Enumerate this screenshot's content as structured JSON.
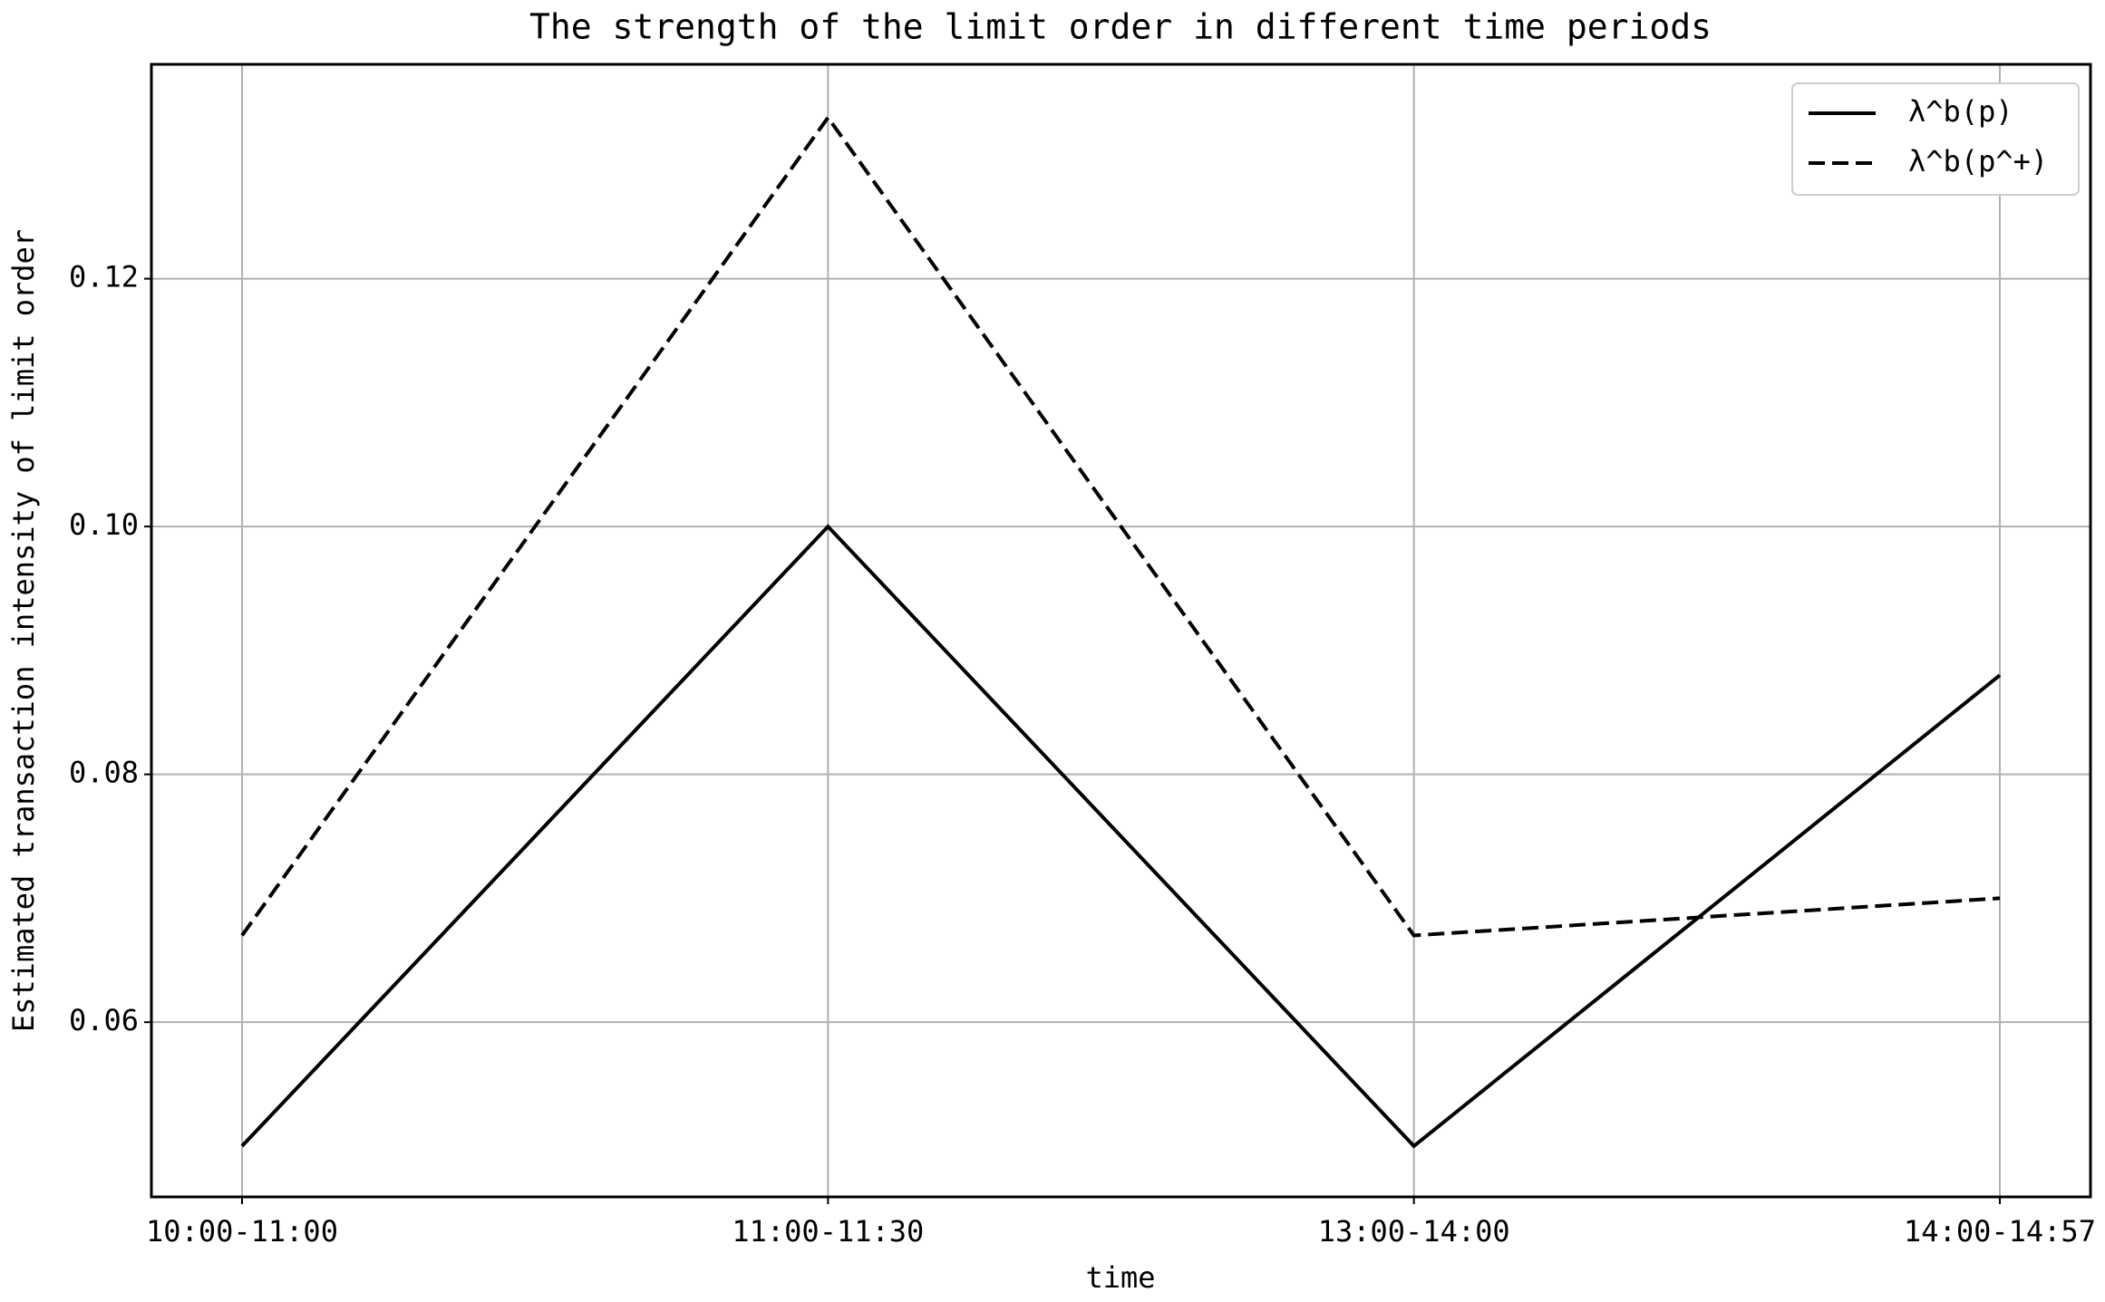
{
  "chart_data": {
    "type": "line",
    "title": "The strength of the limit order in different time periods",
    "x_label": "time",
    "y_label": "Estimated transaction intensity of limit order",
    "categories": [
      "10:00-11:00",
      "11:00-11:30",
      "13:00-14:00",
      "14:00-14:57"
    ],
    "series": [
      {
        "name": "λ^b(p)",
        "color": "#000000",
        "linestyle": "solid",
        "values": [
          0.05,
          0.1,
          0.05,
          0.088
        ]
      },
      {
        "name": "λ^b(p^+)",
        "color": "#000000",
        "linestyle": "dashed",
        "values": [
          0.067,
          0.133,
          0.067,
          0.07
        ]
      }
    ],
    "ylim": [
      0.0459,
      0.1373
    ],
    "yticks": [
      0.06,
      0.08,
      {
        "value": 0.1,
        "label": "0.10"
      },
      0.12
    ],
    "grid": true,
    "legend": "upper right"
  }
}
